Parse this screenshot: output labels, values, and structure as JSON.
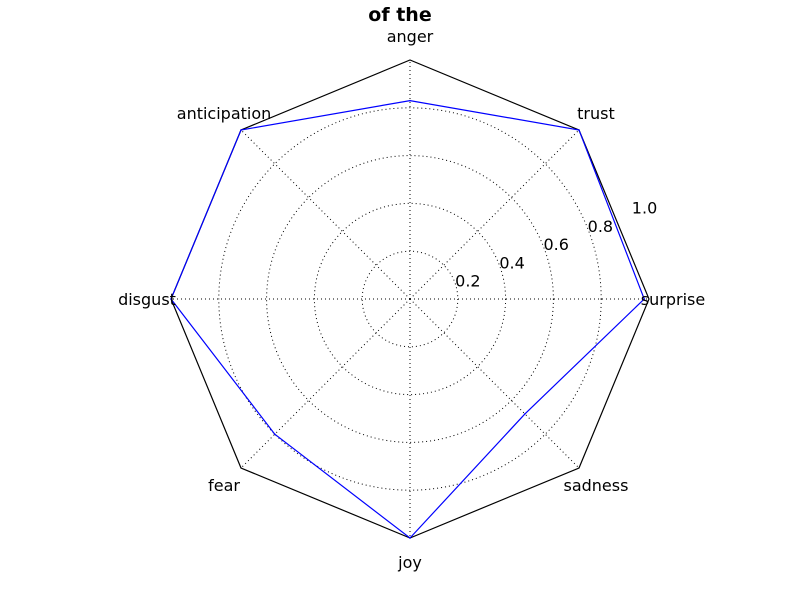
{
  "chart_data": {
    "type": "radar",
    "title": "of the",
    "categories": [
      "surprise",
      "trust",
      "anger",
      "anticipation",
      "disgust",
      "fear",
      "joy",
      "sadness"
    ],
    "series": [
      {
        "values": [
          0.98,
          1.0,
          0.83,
          1.0,
          1.0,
          0.8,
          1.0,
          0.68
        ],
        "color": "#0000ff"
      }
    ],
    "frame_color": "#000000",
    "rlim": [
      0,
      1.0
    ],
    "r_ticks": [
      0.2,
      0.4,
      0.6,
      0.8,
      1.0
    ],
    "r_tick_labels": [
      "0.2",
      "0.4",
      "0.6",
      "0.8",
      "1.0"
    ],
    "grid": true,
    "grid_style": "dotted"
  }
}
